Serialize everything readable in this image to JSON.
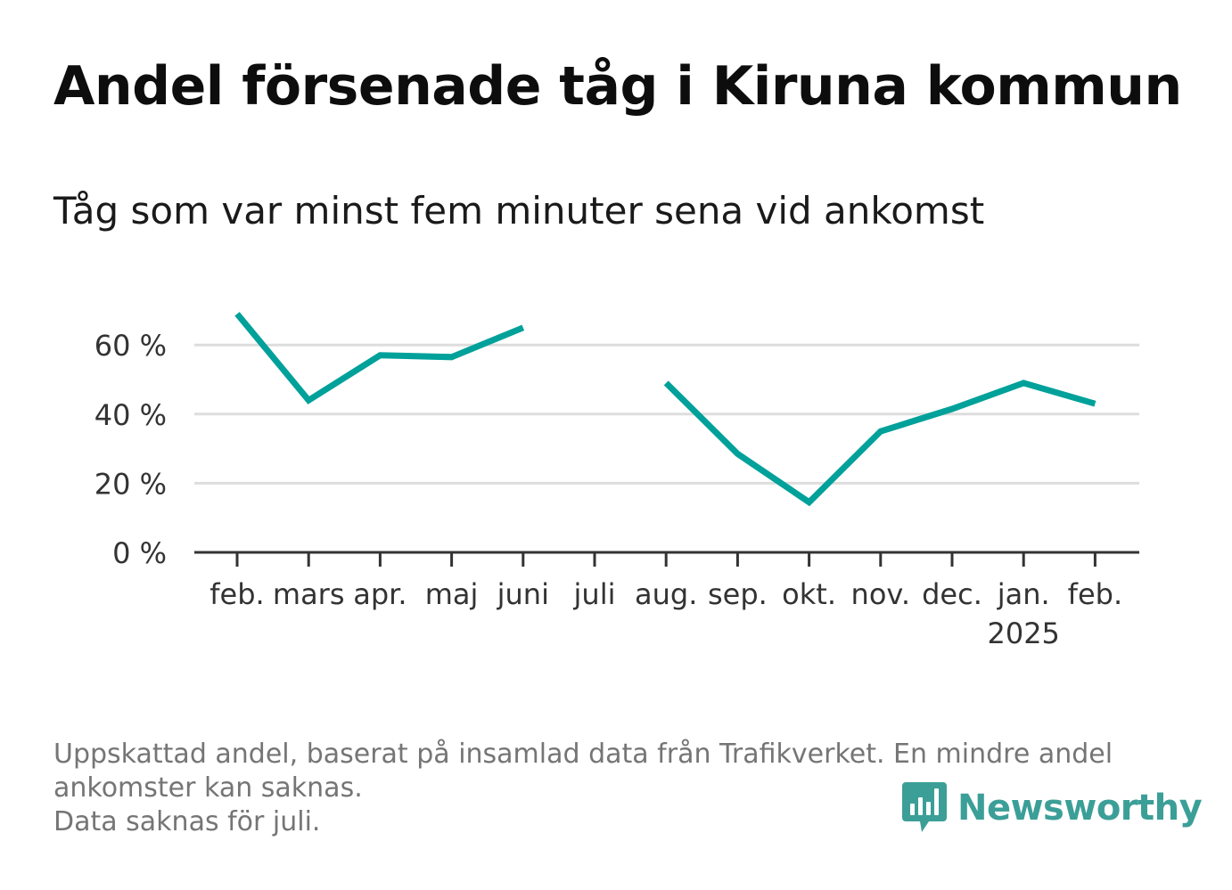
{
  "title": "Andel försenade tåg i Kiruna kommun",
  "subtitle": "Tåg som var minst fem minuter sena vid ankomst",
  "note": {
    "line1": "Uppskattad andel, baserat på insamlad data från Trafikverket. En mindre andel",
    "line2": "ankomster kan saknas.",
    "line3": "Data saknas för juli."
  },
  "brand": {
    "name": "Newsworthy",
    "color": "#3b9f98"
  },
  "chart_data": {
    "type": "line",
    "categories": [
      "feb.",
      "mars",
      "apr.",
      "maj",
      "juni",
      "juli",
      "aug.",
      "sep.",
      "okt.",
      "nov.",
      "dec.",
      "jan.",
      "feb."
    ],
    "year_labels": [
      "",
      "",
      "",
      "",
      "",
      "",
      "",
      "",
      "",
      "",
      "",
      "2025",
      ""
    ],
    "series": [
      {
        "values": [
          69,
          44,
          57,
          56.5,
          65,
          null,
          49,
          28.5,
          14.5,
          35,
          41.5,
          49,
          43
        ],
        "color": "#00a19a"
      }
    ],
    "yticks": [
      0,
      20,
      40,
      60
    ],
    "ytick_labels": [
      "0 %",
      "20 %",
      "40 %",
      "60 %"
    ],
    "ylim": [
      0,
      70
    ],
    "grid": true,
    "line_color": "#00a19a",
    "grid_color": "#dddddd",
    "axis_color": "#333333"
  }
}
